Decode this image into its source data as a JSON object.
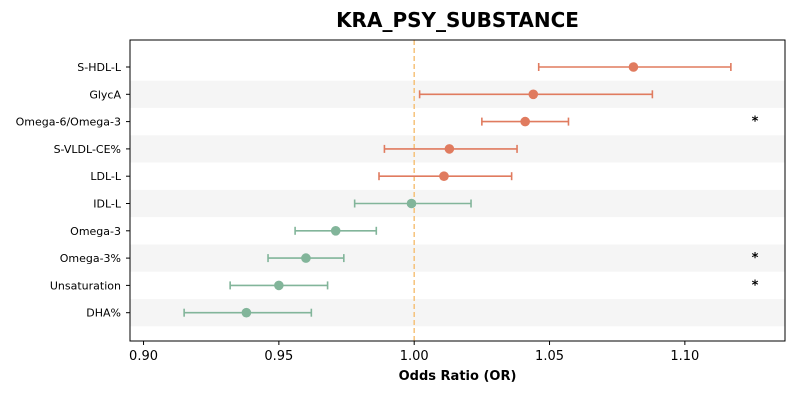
{
  "chart_data": {
    "type": "forest",
    "title": "KRA_PSY_SUBSTANCE",
    "xlabel": "Odds Ratio (OR)",
    "xlim": [
      0.895,
      1.137
    ],
    "xticks": [
      "0.90",
      "0.95",
      "1.00",
      "1.05",
      "1.10"
    ],
    "reference_line": 1.0,
    "colors": {
      "positive": "#E07B5F",
      "negative": "#82B59A",
      "reference": "#F5C27A",
      "band": "#F5F5F5"
    },
    "rows": [
      {
        "label": "S-HDL-L",
        "or": 1.081,
        "lower": 1.046,
        "upper": 1.117,
        "significant": ""
      },
      {
        "label": "GlycA",
        "or": 1.044,
        "lower": 1.002,
        "upper": 1.088,
        "significant": ""
      },
      {
        "label": "Omega-6/Omega-3",
        "or": 1.041,
        "lower": 1.025,
        "upper": 1.057,
        "significant": "*"
      },
      {
        "label": "S-VLDL-CE%",
        "or": 1.013,
        "lower": 0.989,
        "upper": 1.038,
        "significant": ""
      },
      {
        "label": "LDL-L",
        "or": 1.011,
        "lower": 0.987,
        "upper": 1.036,
        "significant": ""
      },
      {
        "label": "IDL-L",
        "or": 0.999,
        "lower": 0.978,
        "upper": 1.021,
        "significant": ""
      },
      {
        "label": "Omega-3",
        "or": 0.971,
        "lower": 0.956,
        "upper": 0.986,
        "significant": ""
      },
      {
        "label": "Omega-3%",
        "or": 0.96,
        "lower": 0.946,
        "upper": 0.974,
        "significant": "*"
      },
      {
        "label": "Unsaturation",
        "or": 0.95,
        "lower": 0.932,
        "upper": 0.968,
        "significant": "*"
      },
      {
        "label": "DHA%",
        "or": 0.938,
        "lower": 0.915,
        "upper": 0.962,
        "significant": ""
      }
    ]
  }
}
